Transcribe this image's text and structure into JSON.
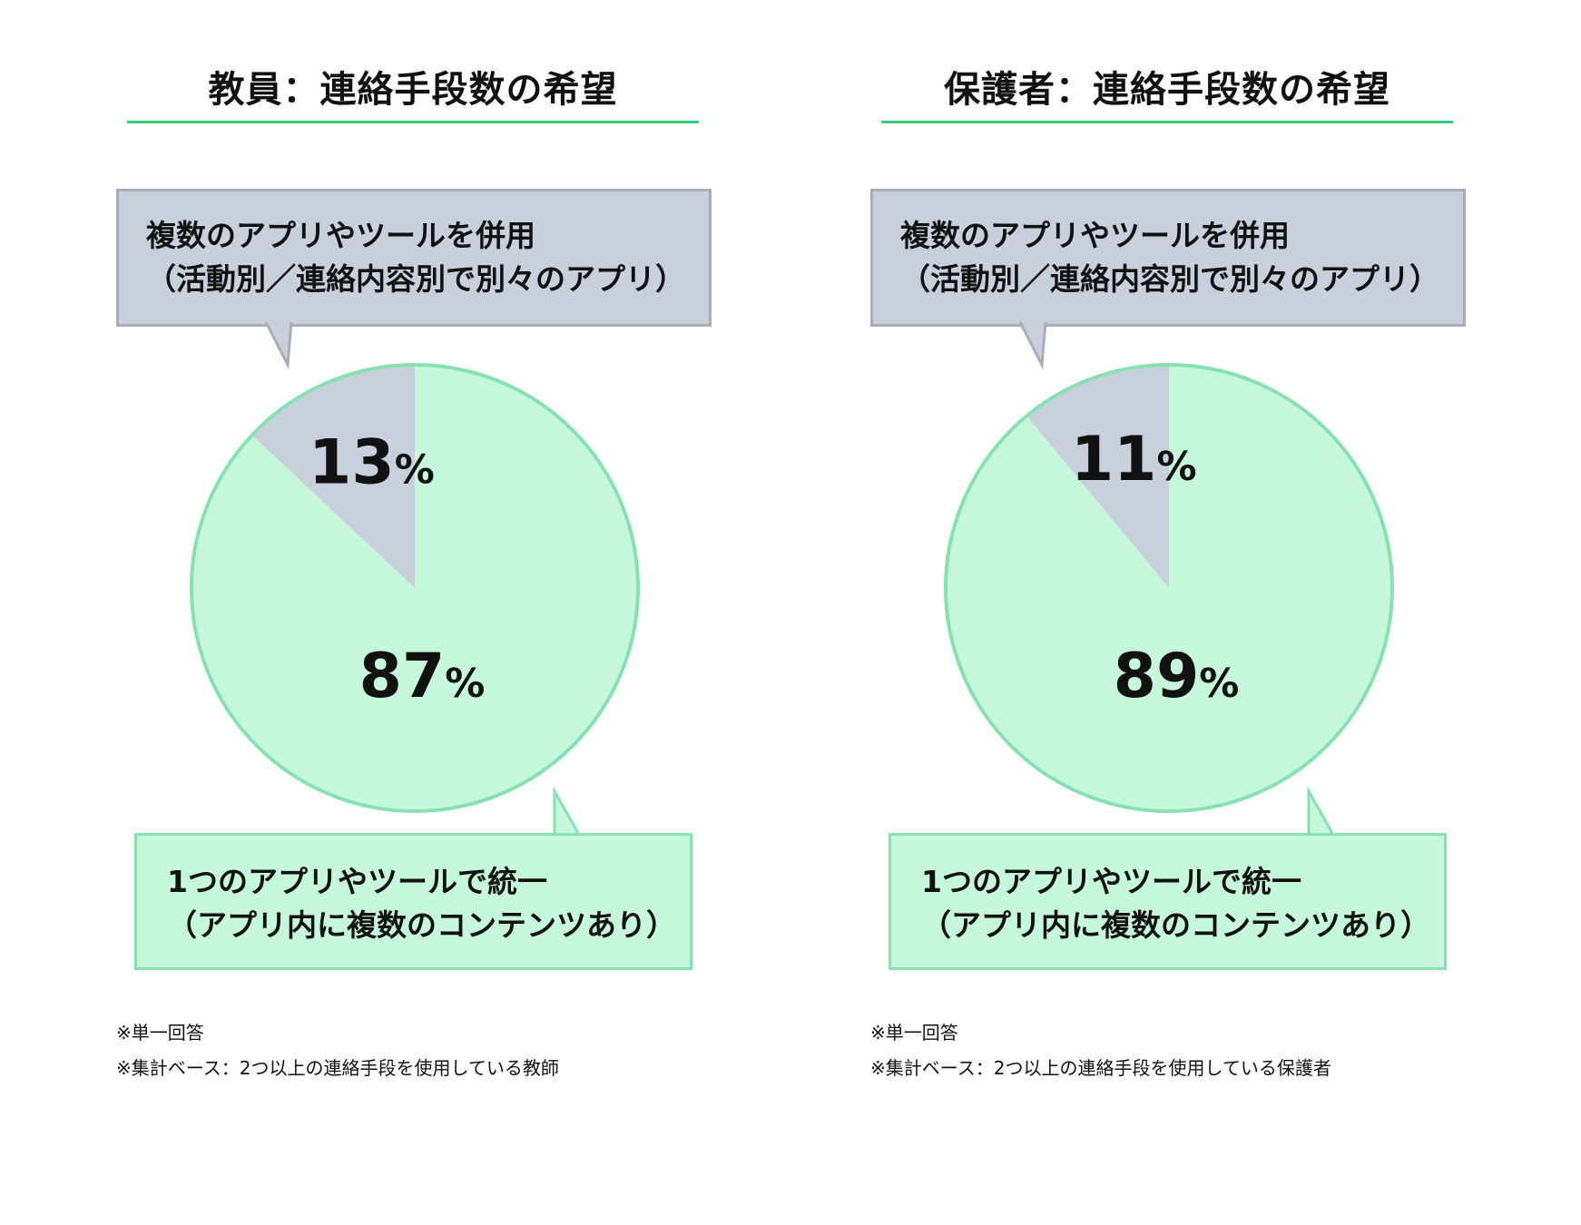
{
  "colors": {
    "green_fill": "#c6f9dc",
    "green_stroke": "#86e3b1",
    "gray_fill": "#c8d0dc",
    "gray_stroke": "#a9aeb5",
    "title_rule": "#33cc77",
    "text": "#111111"
  },
  "chart_data": [
    {
      "type": "pie",
      "title": "教員：連絡手段数の希望",
      "labels": [
        "1つのアプリやツールで統一（アプリ内に複数のコンテンツあり）",
        "複数のアプリやツールを併用（活動別／連絡内容別で別々のアプリ）"
      ],
      "values": [
        87,
        13
      ],
      "value_labels": [
        {
          "num": "87",
          "unit": "%"
        },
        {
          "num": "13",
          "unit": "%"
        }
      ],
      "callout_top": {
        "line1": "複数のアプリやツールを併用",
        "line2": "（活動別／連絡内容別で別々のアプリ）"
      },
      "callout_bottom": {
        "line1": "1つのアプリやツールで統一",
        "line2": "（アプリ内に複数のコンテンツあり）"
      },
      "notes": [
        "※単一回答",
        "※集計ベース：2つ以上の連絡手段を使用している教師"
      ]
    },
    {
      "type": "pie",
      "title": "保護者：連絡手段数の希望",
      "labels": [
        "1つのアプリやツールで統一（アプリ内に複数のコンテンツあり）",
        "複数のアプリやツールを併用（活動別／連絡内容別で別々のアプリ）"
      ],
      "values": [
        89,
        11
      ],
      "value_labels": [
        {
          "num": "89",
          "unit": "%"
        },
        {
          "num": "11",
          "unit": "%"
        }
      ],
      "callout_top": {
        "line1": "複数のアプリやツールを併用",
        "line2": "（活動別／連絡内容別で別々のアプリ）"
      },
      "callout_bottom": {
        "line1": "1つのアプリやツールで統一",
        "line2": "（アプリ内に複数のコンテンツあり）"
      },
      "notes": [
        "※単一回答",
        "※集計ベース：2つ以上の連絡手段を使用している保護者"
      ]
    }
  ]
}
